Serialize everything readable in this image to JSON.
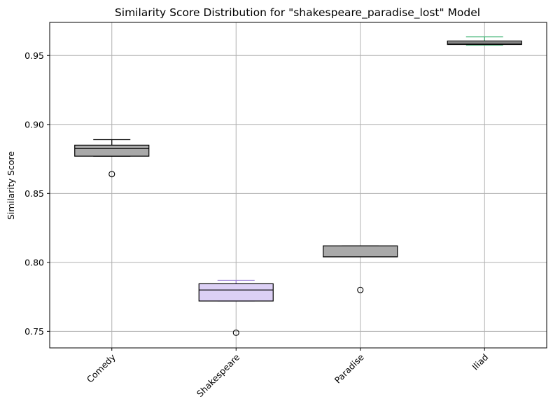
{
  "chart_data": {
    "type": "box",
    "title": "Similarity Score Distribution for \"shakespeare_paradise_lost\" Model",
    "xlabel": "",
    "ylabel": "Similarity Score",
    "ylim": [
      0.738,
      0.974
    ],
    "yticks": [
      0.75,
      0.8,
      0.85,
      0.9,
      0.95
    ],
    "ytick_labels": [
      "0.75",
      "0.80",
      "0.85",
      "0.90",
      "0.95"
    ],
    "grid": true,
    "categories": [
      "Comedy",
      "Shakespeare",
      "Paradise",
      "Iliad"
    ],
    "boxes": [
      {
        "category": "Comedy",
        "whisker_low": 0.877,
        "q1": 0.877,
        "median": 0.8825,
        "q3": 0.885,
        "whisker_high": 0.889,
        "outliers": [
          0.864
        ],
        "fill": "#a9a9a9",
        "whisker_color": "#000000"
      },
      {
        "category": "Shakespeare",
        "whisker_low": 0.772,
        "q1": 0.772,
        "median": 0.78,
        "q3": 0.7845,
        "whisker_high": 0.787,
        "outliers": [
          0.749
        ],
        "fill": "#dcd0f5",
        "whisker_color": "#9b7fd6"
      },
      {
        "category": "Paradise",
        "whisker_low": 0.804,
        "q1": 0.804,
        "median": 0.804,
        "q3": 0.812,
        "whisker_high": 0.812,
        "outliers": [
          0.78
        ],
        "fill": "#a9a9a9",
        "whisker_color": "#555555"
      },
      {
        "category": "Iliad",
        "whisker_low": 0.9575,
        "q1": 0.958,
        "median": 0.959,
        "q3": 0.9605,
        "whisker_high": 0.9635,
        "outliers": [],
        "fill": "#a9a9a9",
        "whisker_color": "#3cb371"
      }
    ]
  }
}
